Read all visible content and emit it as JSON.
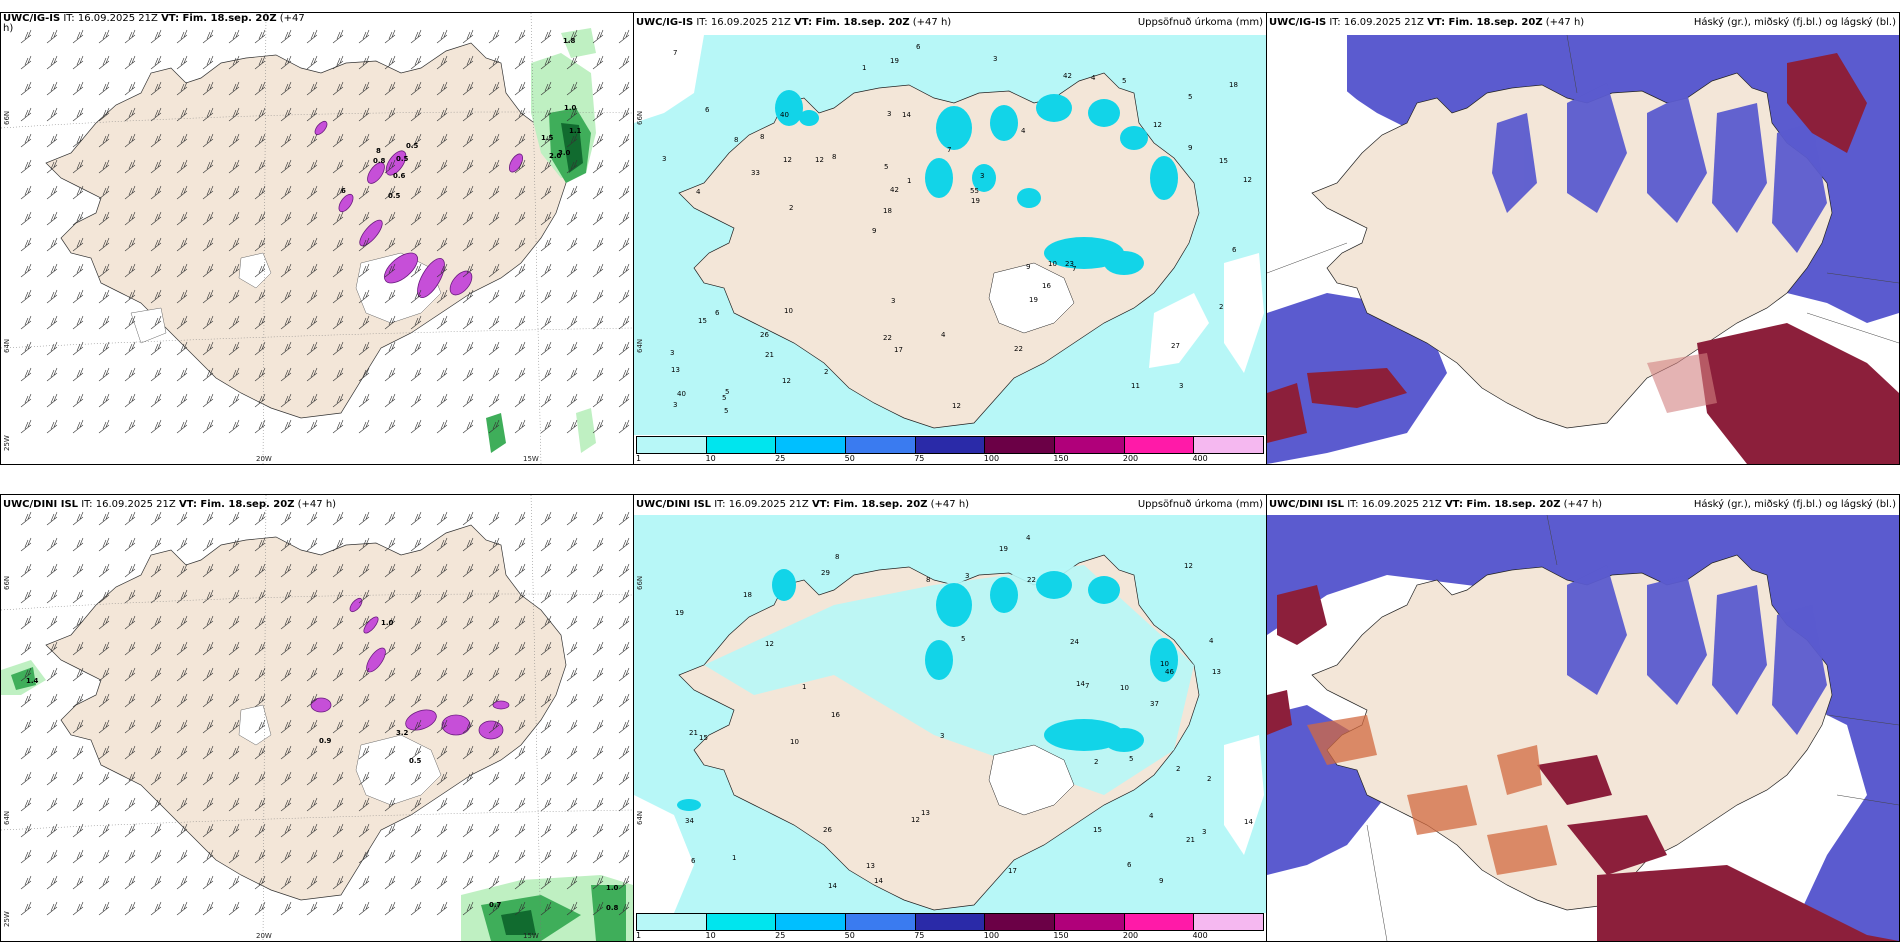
{
  "panels": {
    "wind_top": {
      "model": "UWC/IG-IS",
      "it": "IT: 16.09.2025 21Z",
      "vt": "VT: Fim. 18.sep. 20Z",
      "lead": "(+47",
      "lead2": "h)"
    },
    "precip_top": {
      "model": "UWC/IG-IS",
      "it": "IT: 16.09.2025 21Z",
      "vt": "VT: Fim. 18.sep. 20Z",
      "lead": "(+47 h)",
      "field": "Uppsöfnuð úrkoma (mm)"
    },
    "cloud_top": {
      "model": "UWC/IG-IS",
      "it": "IT: 16.09.2025 21Z",
      "vt": "VT: Fim. 18.sep. 20Z",
      "lead": "(+47 h)",
      "field": "Háský (gr.), miðský (fj.bl.) og lágský (bl.)"
    },
    "wind_bot": {
      "model": "UWC/DINI ISL",
      "it": "IT: 16.09.2025 21Z",
      "vt": "VT: Fim. 18.sep. 20Z",
      "lead": "(+47 h)"
    },
    "precip_bot": {
      "model": "UWC/DINI ISL",
      "it": "IT: 16.09.2025 21Z",
      "vt": "VT: Fim. 18.sep. 20Z",
      "lead": "(+47 h)",
      "field": "Uppsöfnuð úrkoma (mm)"
    },
    "cloud_bot": {
      "model": "UWC/DINI ISL",
      "it": "IT: 16.09.2025 21Z",
      "vt": "VT: Fim. 18.sep. 20Z",
      "lead": "(+47 h)",
      "field": "Háský (gr.), miðský (fj.bl.) og lágský (bl.)"
    }
  },
  "axes": {
    "lat_66": "66N",
    "lat_64": "64N",
    "lon_25w": "25W",
    "lon_20w": "20W",
    "lon_15w": "15W"
  },
  "colorbar": {
    "ticks": [
      "1",
      "10",
      "25",
      "50",
      "75",
      "100",
      "150",
      "200",
      "400"
    ],
    "colors": [
      "#b7f7f7",
      "#00e5ee",
      "#00bfff",
      "#3a7bf0",
      "#2a2aa8",
      "#6b0046",
      "#b0007a",
      "#ff1aa8",
      "#f5b8f0"
    ]
  },
  "colors": {
    "land": "#f3e6d8",
    "sea_precip": "#b7f7f7",
    "precip_heavy": "#12d4e8",
    "cloud_high": "#5b5bcf",
    "cloud_mid": "#8c1f3b",
    "cloud_low": "#4da3e0",
    "convective": "#c64fd8",
    "green_precip": "#3fae5a"
  },
  "precip_labels_top": [
    "3",
    "4",
    "5",
    "9",
    "4",
    "5",
    "3",
    "7",
    "6",
    "8",
    "13",
    "21",
    "14",
    "3",
    "7",
    "6",
    "19",
    "12",
    "9",
    "9",
    "18",
    "22",
    "42",
    "40",
    "42",
    "10",
    "11",
    "27",
    "23",
    "12",
    "12",
    "33",
    "19",
    "12",
    "15",
    "55",
    "40",
    "17",
    "19",
    "15",
    "12",
    "18",
    "16",
    "22",
    "26",
    "5",
    "3",
    "4",
    "5",
    "6",
    "2",
    "3",
    "8",
    "4",
    "5",
    "3",
    "1",
    "1",
    "2",
    "3",
    "2",
    "10",
    "12",
    "3",
    "7",
    "8",
    "6",
    "5"
  ],
  "precip_labels_bot": [
    "4",
    "4",
    "3",
    "5",
    "6",
    "8",
    "10",
    "26",
    "12",
    "12",
    "13",
    "19",
    "37",
    "14",
    "34",
    "18",
    "21",
    "29",
    "13",
    "46",
    "21",
    "15",
    "17",
    "14",
    "13",
    "12",
    "19",
    "22",
    "24",
    "14",
    "10",
    "15",
    "14",
    "3",
    "2",
    "6",
    "7",
    "8",
    "9",
    "16",
    "5",
    "10",
    "3",
    "1",
    "2",
    "2",
    "1",
    "4"
  ],
  "wind_labels_top": [
    "0.5",
    "0.8",
    "0.5",
    "0.6",
    "0.5",
    "6",
    "8",
    "1.5",
    "1.1",
    "1.0",
    "3.0",
    "2.0",
    "1.8"
  ],
  "wind_labels_bot": [
    "1.0",
    "1.4",
    "0.5",
    "0.7",
    "0.9",
    "3.2",
    "1.0",
    "0.8"
  ]
}
